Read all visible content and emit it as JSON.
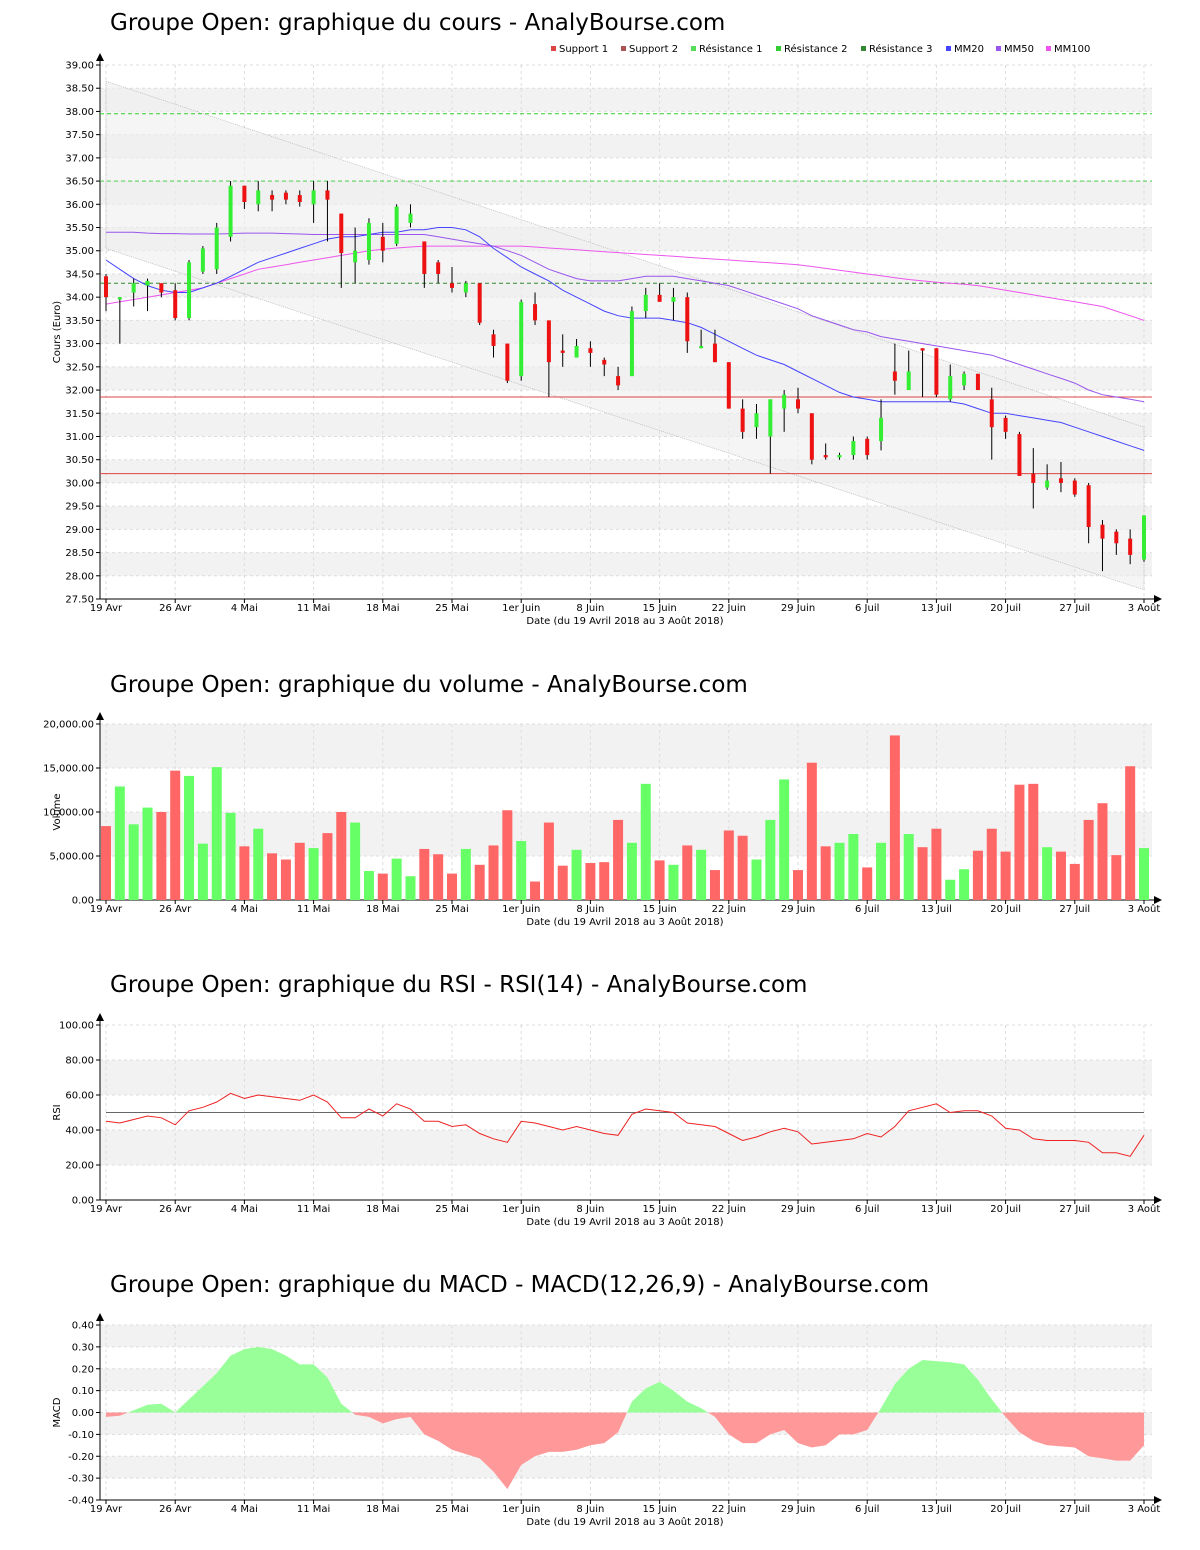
{
  "colors": {
    "up": "#33ee33",
    "down": "#ee1111",
    "wick": "#000000",
    "vol_up": "#66ff66",
    "vol_down": "#ff6666",
    "rsi_line": "#ee2222",
    "rsi_mid": "#666666",
    "macd_pos": "#99ff99",
    "macd_neg": "#ff9999",
    "support1": "#dd4444",
    "support2": "#aa5555",
    "res1": "#55dd55",
    "res2": "#33cc33",
    "res3": "#338833",
    "mm20": "#4444ff",
    "mm50": "#9955ee",
    "mm100": "#ee55ee",
    "band_fill": "#eeeeee",
    "stripe": "#f2f2f2"
  },
  "dates": {
    "x_ticks": [
      "19 Avr",
      "26 Avr",
      "4 Mai",
      "11 Mai",
      "18 Mai",
      "25 Mai",
      "1er Juin",
      "8 Juin",
      "15 Juin",
      "22 Juin",
      "29 Juin",
      "6 Juil",
      "13 Juil",
      "20 Juil",
      "27 Juil",
      "3 Août"
    ],
    "x_tick_sessions": [
      0,
      5,
      10,
      15,
      20,
      25,
      30,
      35,
      40,
      45,
      50,
      55,
      60,
      65,
      70,
      75
    ],
    "range_label": "Date (du 19 Avril 2018 au 3 Août 2018)"
  },
  "price_chart": {
    "title": "Groupe Open: graphique du cours - AnalyBourse.com",
    "ylabel": "Cours (Euro)",
    "y_ticks": [
      "27.50",
      "28.00",
      "28.50",
      "29.00",
      "29.50",
      "30.00",
      "30.50",
      "31.00",
      "31.50",
      "32.00",
      "32.50",
      "33.00",
      "33.50",
      "34.00",
      "34.50",
      "35.00",
      "35.50",
      "36.00",
      "36.50",
      "37.00",
      "37.50",
      "38.00",
      "38.50",
      "39.00"
    ],
    "legend": [
      {
        "label": "Support 1",
        "color_key": "support1"
      },
      {
        "label": "Support 2",
        "color_key": "support2"
      },
      {
        "label": "Résistance 1",
        "color_key": "res1"
      },
      {
        "label": "Résistance 2",
        "color_key": "res2"
      },
      {
        "label": "Résistance 3",
        "color_key": "res3"
      },
      {
        "label": "MM20",
        "color_key": "mm20"
      },
      {
        "label": "MM50",
        "color_key": "mm50"
      },
      {
        "label": "MM100",
        "color_key": "mm100"
      }
    ]
  },
  "volume_chart": {
    "title": "Groupe Open: graphique du volume - AnalyBourse.com",
    "ylabel": "Volume",
    "y_ticks": [
      "0.00",
      "5,000.00",
      "10,000.00",
      "15,000.00",
      "20,000.00"
    ]
  },
  "rsi_chart": {
    "title": "Groupe Open: graphique du RSI - RSI(14) - AnalyBourse.com",
    "ylabel": "RSI",
    "y_ticks": [
      "0.00",
      "20.00",
      "40.00",
      "60.00",
      "80.00",
      "100.00"
    ]
  },
  "macd_chart": {
    "title": "Groupe Open: graphique du MACD - MACD(12,26,9) - AnalyBourse.com",
    "ylabel": "MACD",
    "y_ticks": [
      "-0.40",
      "-0.30",
      "-0.20",
      "-0.10",
      "0.00",
      "0.10",
      "0.20",
      "0.30",
      "0.40"
    ]
  },
  "chart_data": [
    {
      "type": "candlestick",
      "title": "Groupe Open: graphique du cours - AnalyBourse.com",
      "xlabel": "Date (du 19 Avril 2018 au 3 Août 2018)",
      "ylabel": "Cours (Euro)",
      "ylim": [
        27.5,
        39.0
      ],
      "grid": true,
      "legend_position": "top-right",
      "support_levels": {
        "Support 1": 31.85,
        "Support 2": 30.2
      },
      "resistance_levels": {
        "Résistance 1": 34.3,
        "Résistance 2": 36.5,
        "Résistance 3": 37.95
      },
      "trend_channel": {
        "upper": [
          38.65,
          31.2
        ],
        "lower": [
          35.05,
          27.7
        ]
      },
      "candles": [
        {
          "o": 34.45,
          "h": 34.5,
          "l": 33.7,
          "c": 34.0
        },
        {
          "o": 33.95,
          "h": 34.0,
          "l": 33.0,
          "c": 34.0
        },
        {
          "o": 34.1,
          "h": 34.4,
          "l": 33.8,
          "c": 34.3
        },
        {
          "o": 34.25,
          "h": 34.4,
          "l": 33.7,
          "c": 34.35
        },
        {
          "o": 34.3,
          "h": 34.3,
          "l": 34.0,
          "c": 34.1
        },
        {
          "o": 34.15,
          "h": 34.3,
          "l": 33.5,
          "c": 33.55
        },
        {
          "o": 33.55,
          "h": 34.8,
          "l": 33.5,
          "c": 34.75
        },
        {
          "o": 34.55,
          "h": 35.1,
          "l": 34.5,
          "c": 35.05
        },
        {
          "o": 34.6,
          "h": 35.6,
          "l": 34.5,
          "c": 35.5
        },
        {
          "o": 35.3,
          "h": 36.5,
          "l": 35.2,
          "c": 36.4
        },
        {
          "o": 36.4,
          "h": 36.4,
          "l": 35.9,
          "c": 36.05
        },
        {
          "o": 36.0,
          "h": 36.5,
          "l": 35.85,
          "c": 36.3
        },
        {
          "o": 36.2,
          "h": 36.3,
          "l": 35.85,
          "c": 36.1
        },
        {
          "o": 36.25,
          "h": 36.3,
          "l": 36.0,
          "c": 36.1
        },
        {
          "o": 36.2,
          "h": 36.3,
          "l": 35.95,
          "c": 36.05
        },
        {
          "o": 36.0,
          "h": 36.5,
          "l": 35.6,
          "c": 36.3
        },
        {
          "o": 36.3,
          "h": 36.5,
          "l": 35.2,
          "c": 36.1
        },
        {
          "o": 35.8,
          "h": 35.8,
          "l": 34.2,
          "c": 34.95
        },
        {
          "o": 34.75,
          "h": 35.5,
          "l": 34.3,
          "c": 35.0
        },
        {
          "o": 34.8,
          "h": 35.7,
          "l": 34.7,
          "c": 35.6
        },
        {
          "o": 35.3,
          "h": 35.6,
          "l": 34.75,
          "c": 35.0
        },
        {
          "o": 35.15,
          "h": 36.0,
          "l": 35.1,
          "c": 35.95
        },
        {
          "o": 35.6,
          "h": 36.0,
          "l": 35.5,
          "c": 35.8
        },
        {
          "o": 35.2,
          "h": 35.2,
          "l": 34.2,
          "c": 34.5
        },
        {
          "o": 34.75,
          "h": 34.8,
          "l": 34.3,
          "c": 34.5
        },
        {
          "o": 34.3,
          "h": 34.65,
          "l": 34.1,
          "c": 34.2
        },
        {
          "o": 34.1,
          "h": 34.35,
          "l": 34.0,
          "c": 34.3
        },
        {
          "o": 34.3,
          "h": 34.3,
          "l": 33.4,
          "c": 33.45
        },
        {
          "o": 33.2,
          "h": 33.3,
          "l": 32.7,
          "c": 32.95
        },
        {
          "o": 33.0,
          "h": 33.0,
          "l": 32.15,
          "c": 32.2
        },
        {
          "o": 32.3,
          "h": 33.95,
          "l": 32.2,
          "c": 33.9
        },
        {
          "o": 33.85,
          "h": 34.1,
          "l": 33.4,
          "c": 33.5
        },
        {
          "o": 33.5,
          "h": 33.5,
          "l": 31.85,
          "c": 32.6
        },
        {
          "o": 32.85,
          "h": 33.2,
          "l": 32.5,
          "c": 32.8
        },
        {
          "o": 32.7,
          "h": 33.1,
          "l": 32.7,
          "c": 32.95
        },
        {
          "o": 32.9,
          "h": 33.05,
          "l": 32.5,
          "c": 32.8
        },
        {
          "o": 32.65,
          "h": 32.7,
          "l": 32.3,
          "c": 32.55
        },
        {
          "o": 32.3,
          "h": 32.5,
          "l": 32.0,
          "c": 32.1
        },
        {
          "o": 32.3,
          "h": 33.8,
          "l": 32.3,
          "c": 33.7
        },
        {
          "o": 33.7,
          "h": 34.2,
          "l": 33.55,
          "c": 34.05
        },
        {
          "o": 34.05,
          "h": 34.3,
          "l": 33.9,
          "c": 33.9
        },
        {
          "o": 33.9,
          "h": 34.2,
          "l": 33.5,
          "c": 34.0
        },
        {
          "o": 34.0,
          "h": 34.1,
          "l": 32.8,
          "c": 33.05
        },
        {
          "o": 32.9,
          "h": 33.3,
          "l": 32.9,
          "c": 32.95
        },
        {
          "o": 33.0,
          "h": 33.3,
          "l": 32.6,
          "c": 32.6
        },
        {
          "o": 32.6,
          "h": 32.6,
          "l": 31.6,
          "c": 31.6
        },
        {
          "o": 31.6,
          "h": 31.8,
          "l": 30.95,
          "c": 31.1
        },
        {
          "o": 31.2,
          "h": 31.7,
          "l": 30.95,
          "c": 31.5
        },
        {
          "o": 31.0,
          "h": 31.8,
          "l": 30.2,
          "c": 31.8
        },
        {
          "o": 31.6,
          "h": 32.0,
          "l": 31.1,
          "c": 31.9
        },
        {
          "o": 31.8,
          "h": 32.05,
          "l": 31.5,
          "c": 31.6
        },
        {
          "o": 31.5,
          "h": 31.5,
          "l": 30.4,
          "c": 30.5
        },
        {
          "o": 30.6,
          "h": 30.85,
          "l": 30.5,
          "c": 30.55
        },
        {
          "o": 30.55,
          "h": 30.65,
          "l": 30.5,
          "c": 30.6
        },
        {
          "o": 30.6,
          "h": 31.0,
          "l": 30.5,
          "c": 30.9
        },
        {
          "o": 30.95,
          "h": 31.0,
          "l": 30.5,
          "c": 30.6
        },
        {
          "o": 30.9,
          "h": 31.8,
          "l": 30.7,
          "c": 31.4
        },
        {
          "o": 32.4,
          "h": 33.0,
          "l": 31.9,
          "c": 32.2
        },
        {
          "o": 32.0,
          "h": 32.85,
          "l": 32.0,
          "c": 32.4
        },
        {
          "o": 32.9,
          "h": 32.9,
          "l": 31.85,
          "c": 32.85
        },
        {
          "o": 32.9,
          "h": 32.9,
          "l": 31.85,
          "c": 31.9
        },
        {
          "o": 31.8,
          "h": 32.55,
          "l": 31.75,
          "c": 32.3
        },
        {
          "o": 32.1,
          "h": 32.4,
          "l": 32.0,
          "c": 32.35
        },
        {
          "o": 32.35,
          "h": 32.35,
          "l": 32.0,
          "c": 32.0
        },
        {
          "o": 31.8,
          "h": 32.05,
          "l": 30.5,
          "c": 31.2
        },
        {
          "o": 31.4,
          "h": 31.45,
          "l": 30.95,
          "c": 31.1
        },
        {
          "o": 31.05,
          "h": 31.1,
          "l": 30.2,
          "c": 30.15
        },
        {
          "o": 30.2,
          "h": 30.75,
          "l": 29.45,
          "c": 30.0
        },
        {
          "o": 29.9,
          "h": 30.4,
          "l": 29.85,
          "c": 30.05
        },
        {
          "o": 30.1,
          "h": 30.45,
          "l": 29.8,
          "c": 30.0
        },
        {
          "o": 30.05,
          "h": 30.1,
          "l": 29.7,
          "c": 29.75
        },
        {
          "o": 29.95,
          "h": 30.0,
          "l": 28.7,
          "c": 29.05
        },
        {
          "o": 29.1,
          "h": 29.2,
          "l": 28.1,
          "c": 28.8
        },
        {
          "o": 28.95,
          "h": 29.0,
          "l": 28.45,
          "c": 28.7
        },
        {
          "o": 28.8,
          "h": 29.0,
          "l": 28.25,
          "c": 28.45
        },
        {
          "o": 28.35,
          "h": 29.3,
          "l": 28.3,
          "c": 29.3
        }
      ],
      "mm20": [
        34.8,
        34.6,
        34.4,
        34.25,
        34.15,
        34.1,
        34.1,
        34.2,
        34.3,
        34.45,
        34.6,
        34.75,
        34.85,
        34.95,
        35.05,
        35.15,
        35.25,
        35.3,
        35.3,
        35.35,
        35.4,
        35.4,
        35.45,
        35.45,
        35.5,
        35.5,
        35.45,
        35.3,
        35.05,
        34.85,
        34.65,
        34.5,
        34.35,
        34.15,
        34.0,
        33.85,
        33.7,
        33.6,
        33.55,
        33.55,
        33.55,
        33.5,
        33.45,
        33.35,
        33.2,
        33.05,
        32.9,
        32.75,
        32.65,
        32.55,
        32.4,
        32.25,
        32.1,
        31.95,
        31.85,
        31.8,
        31.75,
        31.75,
        31.75,
        31.75,
        31.75,
        31.75,
        31.7,
        31.6,
        31.5,
        31.5,
        31.45,
        31.4,
        31.35,
        31.3,
        31.2,
        31.1,
        31.0,
        30.9,
        30.8,
        30.7
      ],
      "mm50": [
        35.4,
        35.4,
        35.4,
        35.38,
        35.37,
        35.37,
        35.36,
        35.36,
        35.36,
        35.37,
        35.38,
        35.38,
        35.38,
        35.37,
        35.36,
        35.35,
        35.35,
        35.35,
        35.35,
        35.35,
        35.35,
        35.35,
        35.35,
        35.35,
        35.3,
        35.25,
        35.2,
        35.15,
        35.1,
        35.0,
        34.9,
        34.75,
        34.6,
        34.5,
        34.4,
        34.35,
        34.35,
        34.35,
        34.4,
        34.45,
        34.45,
        34.45,
        34.4,
        34.35,
        34.3,
        34.25,
        34.15,
        34.05,
        33.95,
        33.85,
        33.75,
        33.6,
        33.5,
        33.4,
        33.3,
        33.25,
        33.15,
        33.1,
        33.05,
        33.0,
        32.95,
        32.9,
        32.85,
        32.8,
        32.75,
        32.65,
        32.55,
        32.45,
        32.35,
        32.25,
        32.15,
        32.0,
        31.9,
        31.85,
        31.8,
        31.75
      ],
      "mm100": [
        33.85,
        33.9,
        33.95,
        34.0,
        34.05,
        34.1,
        34.15,
        34.2,
        34.3,
        34.4,
        34.5,
        34.6,
        34.65,
        34.7,
        34.75,
        34.8,
        34.85,
        34.9,
        34.95,
        35.0,
        35.03,
        35.06,
        35.08,
        35.1,
        35.1,
        35.1,
        35.1,
        35.1,
        35.1,
        35.1,
        35.1,
        35.08,
        35.06,
        35.04,
        35.02,
        35.0,
        34.98,
        34.96,
        34.94,
        34.92,
        34.9,
        34.88,
        34.86,
        34.84,
        34.82,
        34.8,
        34.78,
        34.76,
        34.74,
        34.72,
        34.7,
        34.66,
        34.62,
        34.58,
        34.54,
        34.5,
        34.46,
        34.42,
        34.38,
        34.35,
        34.32,
        34.3,
        34.28,
        34.25,
        34.2,
        34.15,
        34.1,
        34.05,
        34.0,
        33.95,
        33.9,
        33.85,
        33.8,
        33.7,
        33.6,
        33.5
      ]
    },
    {
      "type": "bar",
      "title": "Groupe Open: graphique du volume - AnalyBourse.com",
      "xlabel": "Date (du 19 Avril 2018 au 3 Août 2018)",
      "ylabel": "Volume",
      "ylim": [
        0,
        20000
      ],
      "grid": true,
      "values": [
        8400,
        12900,
        8600,
        10500,
        10000,
        14700,
        14100,
        6400,
        15100,
        9900,
        6100,
        8100,
        5300,
        4600,
        6500,
        5900,
        7600,
        10000,
        8800,
        3300,
        3000,
        4700,
        2700,
        5800,
        5200,
        3000,
        5800,
        4000,
        6200,
        10200,
        6700,
        2100,
        8800,
        3900,
        5700,
        4200,
        4300,
        9100,
        6500,
        13200,
        4500,
        4000,
        6200,
        5700,
        3400,
        7900,
        7300,
        4600,
        9100,
        13700,
        3400,
        15600,
        6100,
        6500,
        7500,
        3700,
        6500,
        18700,
        7500,
        6000,
        8100,
        2300,
        3500,
        5600,
        8100,
        5500,
        13100,
        13200,
        6000,
        5500,
        4100,
        9100,
        11000,
        5100,
        15200,
        5900
      ]
    },
    {
      "type": "line",
      "title": "Groupe Open: graphique du RSI - RSI(14) - AnalyBourse.com",
      "xlabel": "Date (du 19 Avril 2018 au 3 Août 2018)",
      "ylabel": "RSI",
      "ylim": [
        0,
        100
      ],
      "grid": true,
      "reference_line": 50,
      "values": [
        45,
        44,
        46,
        48,
        47,
        43,
        51,
        53,
        56,
        61,
        58,
        60,
        59,
        58,
        57,
        60,
        56,
        47,
        47,
        52,
        48,
        55,
        52,
        45,
        45,
        42,
        43,
        38,
        35,
        33,
        45,
        44,
        42,
        40,
        42,
        40,
        38,
        37,
        49,
        52,
        51,
        50,
        44,
        43,
        42,
        38,
        34,
        36,
        39,
        41,
        39,
        32,
        33,
        34,
        35,
        38,
        36,
        42,
        51,
        53,
        55,
        50,
        51,
        51,
        48,
        41,
        40,
        35,
        34,
        34,
        34,
        33,
        27,
        27,
        25,
        37
      ]
    },
    {
      "type": "area",
      "title": "Groupe Open: graphique du MACD - MACD(12,26,9) - AnalyBourse.com",
      "xlabel": "Date (du 19 Avril 2018 au 3 Août 2018)",
      "ylabel": "MACD",
      "ylim": [
        -0.4,
        0.4
      ],
      "grid": true,
      "values": [
        -0.02,
        -0.015,
        0.01,
        0.035,
        0.04,
        0.0,
        0.06,
        0.12,
        0.18,
        0.26,
        0.29,
        0.3,
        0.29,
        0.26,
        0.22,
        0.22,
        0.16,
        0.04,
        -0.01,
        -0.02,
        -0.05,
        -0.03,
        -0.02,
        -0.1,
        -0.13,
        -0.17,
        -0.19,
        -0.21,
        -0.27,
        -0.35,
        -0.24,
        -0.2,
        -0.18,
        -0.18,
        -0.17,
        -0.15,
        -0.14,
        -0.09,
        0.05,
        0.11,
        0.14,
        0.1,
        0.05,
        0.02,
        -0.02,
        -0.1,
        -0.14,
        -0.14,
        -0.1,
        -0.08,
        -0.14,
        -0.16,
        -0.15,
        -0.1,
        -0.1,
        -0.08,
        0.02,
        0.13,
        0.2,
        0.24,
        0.235,
        0.23,
        0.22,
        0.15,
        0.06,
        -0.02,
        -0.09,
        -0.13,
        -0.15,
        -0.155,
        -0.16,
        -0.2,
        -0.21,
        -0.22,
        -0.22,
        -0.15
      ]
    }
  ]
}
